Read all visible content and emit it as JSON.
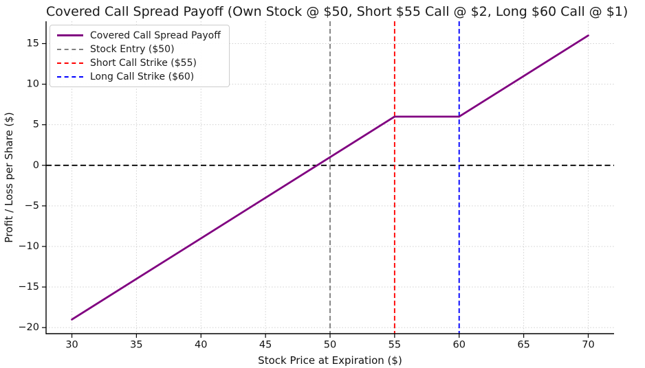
{
  "title": "Covered Call Spread Payoff (Own Stock @ $50, Short $55 Call @ $2, Long $60 Call @ $1)",
  "chart_data": {
    "type": "line",
    "title": "Covered Call Spread Payoff (Own Stock @ $50, Short $55 Call @ $2, Long $60 Call @ $1)",
    "xlabel": "Stock Price at Expiration ($)",
    "ylabel": "Profit / Loss per Share ($)",
    "xlim": [
      28,
      72
    ],
    "ylim": [
      -20.75,
      17.75
    ],
    "xticks": [
      30,
      35,
      40,
      45,
      50,
      55,
      60,
      65,
      70
    ],
    "yticks": [
      -20,
      -15,
      -10,
      -5,
      0,
      5,
      10,
      15
    ],
    "grid": true,
    "grid_color": "#cfcfcf",
    "legend_position": "upper-left",
    "series": [
      {
        "name": "Covered Call Spread Payoff",
        "color": "#800080",
        "style": "solid",
        "x": [
          30,
          35,
          40,
          45,
          50,
          55,
          60,
          65,
          70
        ],
        "values": [
          -19,
          -14,
          -9,
          -4,
          1,
          6,
          6,
          11,
          16
        ]
      }
    ],
    "vlines": [
      {
        "name": "Stock Entry ($50)",
        "x": 50,
        "color": "#808080",
        "style": "dashed"
      },
      {
        "name": "Short Call Strike ($55)",
        "x": 55,
        "color": "#ff0000",
        "style": "dashed"
      },
      {
        "name": "Long Call Strike ($60)",
        "x": 60,
        "color": "#0000ff",
        "style": "dashed"
      }
    ],
    "hlines": [
      {
        "name": "zero-line",
        "y": 0,
        "color": "#000000",
        "style": "dashed"
      }
    ]
  },
  "legend": {
    "items": [
      {
        "label": "Covered Call Spread Payoff",
        "color": "#800080",
        "dash": "solid"
      },
      {
        "label": "Stock Entry ($50)",
        "color": "#808080",
        "dash": "dashed"
      },
      {
        "label": "Short Call Strike ($55)",
        "color": "#ff0000",
        "dash": "dashed"
      },
      {
        "label": "Long Call Strike ($60)",
        "color": "#0000ff",
        "dash": "dashed"
      }
    ]
  }
}
